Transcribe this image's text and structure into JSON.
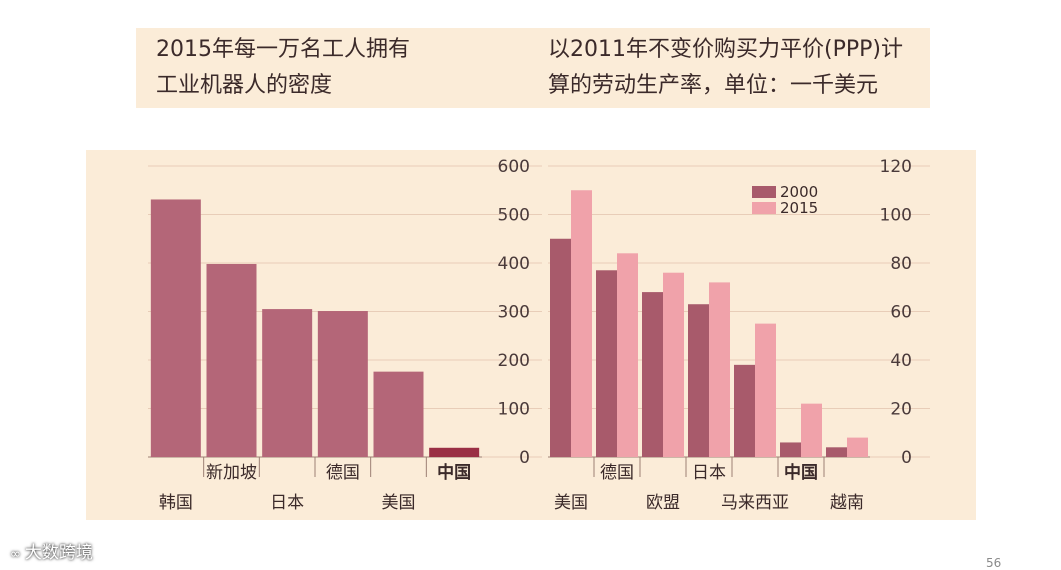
{
  "colors": {
    "bar_left": "#b46678",
    "bar_left_highlight": "#9a2f45",
    "bar_2000": "#a85a6b",
    "bar_2015": "#f0a2aa",
    "grid": "#e8cdb8",
    "tick_text": "#4a3a3a",
    "label_text": "#3b2a2a"
  },
  "titles": {
    "left": "2015年每一万名工人拥有\n工业机器人的密度",
    "right": "以2011年不变价购买力平价(PPP)计\n算的劳动生产率，单位：一千美元"
  },
  "chart_data": [
    {
      "type": "bar",
      "title": "2015年每一万名工人拥有工业机器人的密度",
      "categories": [
        "韩国",
        "新加坡",
        "日本",
        "德国",
        "美国",
        "中国"
      ],
      "values": [
        531,
        398,
        305,
        301,
        176,
        19
      ],
      "highlight": "中国",
      "ylim": [
        0,
        600
      ],
      "yticks": [
        0,
        100,
        200,
        300,
        400,
        500,
        600
      ],
      "label_rows": [
        "bottom",
        "top",
        "bottom",
        "top",
        "bottom",
        "top"
      ]
    },
    {
      "type": "bar",
      "title": "以2011年不变价购买力平价(PPP)计算的劳动生产率，单位：一千美元",
      "categories": [
        "美国",
        "德国",
        "欧盟",
        "日本",
        "马来西亚",
        "中国",
        "越南"
      ],
      "series": [
        {
          "name": "2000",
          "values": [
            90,
            77,
            68,
            63,
            38,
            6,
            4
          ]
        },
        {
          "name": "2015",
          "values": [
            110,
            84,
            76,
            72,
            55,
            22,
            8
          ]
        }
      ],
      "highlight": "中国",
      "ylim": [
        0,
        120
      ],
      "yticks": [
        0,
        20,
        40,
        60,
        80,
        100,
        120
      ],
      "legend": "top-right",
      "label_rows": [
        "bottom",
        "top",
        "bottom",
        "top",
        "bottom",
        "top",
        "bottom"
      ]
    }
  ],
  "watermark": {
    "icon": "∞",
    "text": "大数跨境"
  },
  "page_number": "56"
}
